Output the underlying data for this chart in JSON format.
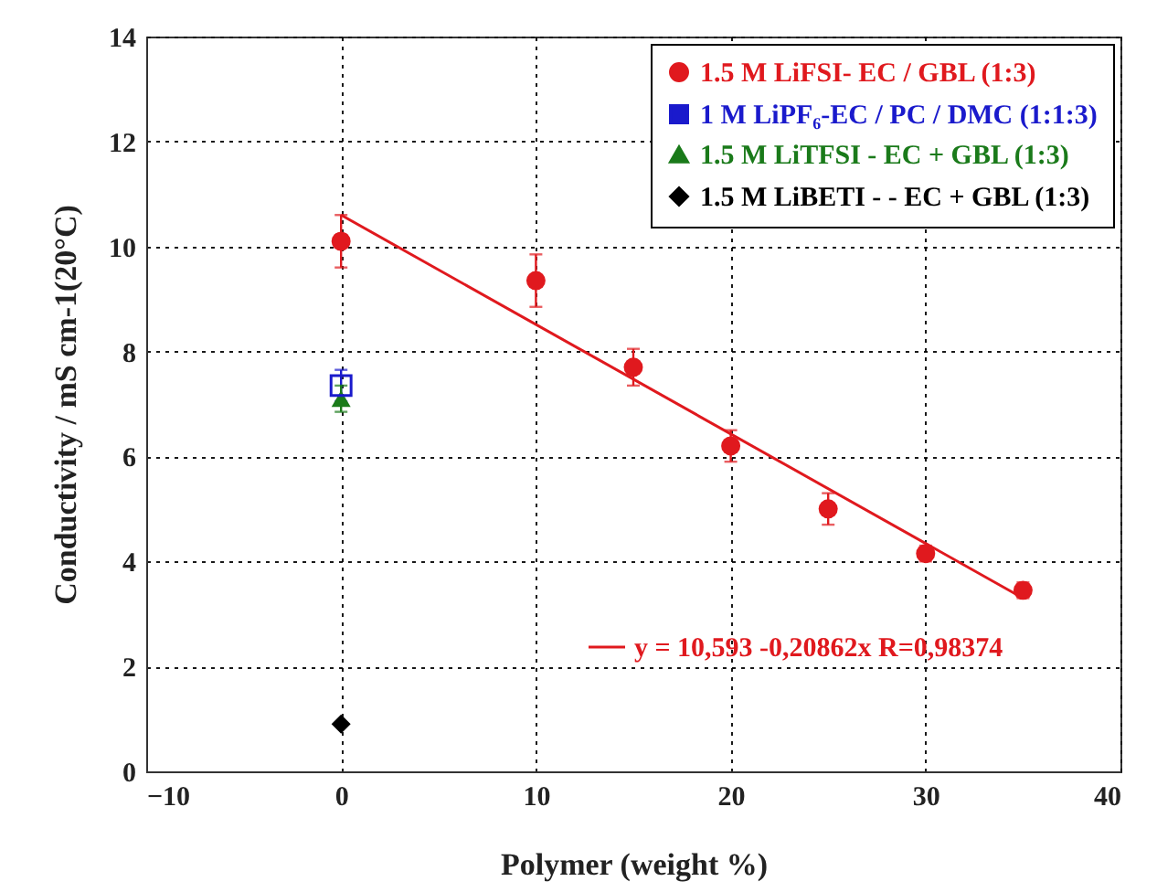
{
  "chart_data": {
    "type": "scatter",
    "xlabel": "Polymer (weight %)",
    "ylabel": "Conductivity / mS cm-1(20°C)",
    "xlim": [
      -10,
      40
    ],
    "xticks": [
      -10,
      0,
      10,
      20,
      30,
      40
    ],
    "ylim": [
      0,
      14
    ],
    "yticks": [
      0,
      2,
      4,
      6,
      8,
      10,
      12,
      14
    ],
    "grid": true,
    "legend": "top right",
    "series": [
      {
        "name": "1.5 M LiFSI- EC / GBL (1:3)",
        "color": "#e0191e",
        "marker": "circle",
        "x": [
          0,
          10,
          15,
          20,
          25,
          30,
          35
        ],
        "values": [
          10.1,
          9.35,
          7.7,
          6.2,
          5.0,
          4.15,
          3.45
        ],
        "errors": [
          0.5,
          0.5,
          0.35,
          0.3,
          0.3,
          0.15,
          0.15
        ]
      },
      {
        "name": "1 M LiPF₆-EC / PC / DMC (1:1:3)",
        "color": "#1a1acc",
        "marker": "square",
        "x": [
          0
        ],
        "values": [
          7.35
        ],
        "errors": [
          0.3
        ]
      },
      {
        "name": "1.5 M LiTFSI - EC + GBL (1:3)",
        "color": "#1a7a1a",
        "marker": "triangle",
        "x": [
          0
        ],
        "values": [
          7.1
        ],
        "errors": [
          0.25
        ]
      },
      {
        "name": "1.5 M LiBETI - - EC + GBL (1:3)",
        "color": "#000000",
        "marker": "diamond",
        "x": [
          0
        ],
        "values": [
          0.9
        ]
      },
      {
        "name": "y = 10,593 -0,20862x  R=0,98374",
        "type": "line",
        "color": "#e0191e",
        "x": [
          0,
          35
        ],
        "values": [
          10.6,
          3.3
        ]
      }
    ]
  }
}
